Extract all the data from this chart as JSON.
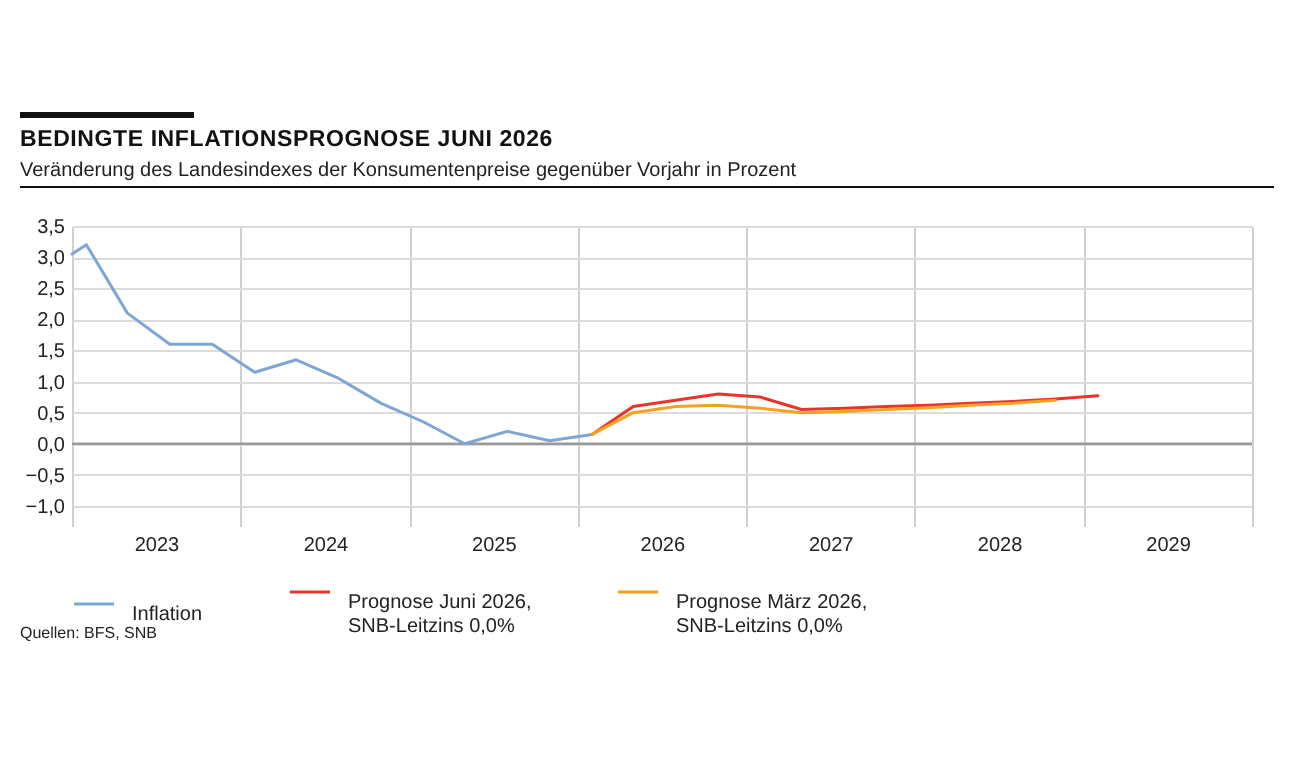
{
  "chart_data": {
    "type": "line",
    "title": "BEDINGTE INFLATIONSPROGNOSE JUNI 2026",
    "subtitle": "Veränderung des Landesindexes der Konsumentenpreise gegenüber Vorjahr in Prozent",
    "annotations": [
      "Quellen: BFS, SNB"
    ],
    "series": [
      {
        "name": "Inflation",
        "color": "#7ea6d3",
        "x": [
          "2023-01",
          "2023-02",
          "2023-05",
          "2023-08",
          "2023-11",
          "2024-02",
          "2024-05",
          "2024-08",
          "2024-11",
          "2025-02",
          "2025-05",
          "2025-08",
          "2025-11",
          "2026-02"
        ],
        "values": [
          3.05,
          3.2,
          2.1,
          1.6,
          1.6,
          1.15,
          1.35,
          1.05,
          0.65,
          0.35,
          0.0,
          0.2,
          0.05,
          0.15
        ]
      },
      {
        "name": "Prognose Juni 2026, SNB-Leitzins 0,0%",
        "color": "#e8352b",
        "x": [
          "2026-02",
          "2026-05",
          "2026-08",
          "2026-11",
          "2027-02",
          "2027-05",
          "2027-08",
          "2027-11",
          "2028-02",
          "2028-05",
          "2028-08",
          "2028-11",
          "2029-02"
        ],
        "values": [
          0.15,
          0.6,
          0.7,
          0.8,
          0.75,
          0.55,
          0.57,
          0.6,
          0.62,
          0.65,
          0.68,
          0.72,
          0.77
        ]
      },
      {
        "name": "Prognose März 2026, SNB-Leitzins 0,0%",
        "color": "#f5a21f",
        "x": [
          "2026-02",
          "2026-05",
          "2026-08",
          "2026-11",
          "2027-02",
          "2027-05",
          "2027-08",
          "2027-11",
          "2028-02",
          "2028-05",
          "2028-08",
          "2028-11"
        ],
        "values": [
          0.15,
          0.5,
          0.6,
          0.62,
          0.57,
          0.5,
          0.52,
          0.55,
          0.58,
          0.62,
          0.65,
          0.7
        ]
      }
    ],
    "xlim": [
      "2023-01-01",
      "2030-01-01"
    ],
    "xticks": [
      {
        "value": "2023-01-01",
        "label": null
      },
      {
        "value": "2023-07-02",
        "label": "2023"
      },
      {
        "value": "2024-01-01",
        "label": null
      },
      {
        "value": "2024-07-02",
        "label": "2024"
      },
      {
        "value": "2025-01-01",
        "label": null
      },
      {
        "value": "2025-07-02",
        "label": "2025"
      },
      {
        "value": "2026-01-01",
        "label": null
      },
      {
        "value": "2026-07-02",
        "label": "2026"
      },
      {
        "value": "2027-01-01",
        "label": null
      },
      {
        "value": "2027-07-02",
        "label": "2027"
      },
      {
        "value": "2028-01-01",
        "label": null
      },
      {
        "value": "2028-07-02",
        "label": "2028"
      },
      {
        "value": "2029-01-01",
        "label": null
      },
      {
        "value": "2029-07-02",
        "label": "2029"
      },
      {
        "value": "2030-01-01",
        "label": null
      }
    ],
    "ylim": [
      -1.0,
      3.5
    ],
    "yticks": [
      {
        "value": -1.0,
        "label": "−1,0"
      },
      {
        "value": -0.5,
        "label": "−0,5"
      },
      {
        "value": 0,
        "label": "0,0"
      },
      {
        "value": 0.5,
        "label": "0,5"
      },
      {
        "value": 1.0,
        "label": "1,0"
      },
      {
        "value": 1.5,
        "label": "1,5"
      },
      {
        "value": 2.0,
        "label": "2,0"
      },
      {
        "value": 2.5,
        "label": "2,5"
      },
      {
        "value": 3.0,
        "label": "3,0"
      },
      {
        "value": 3.5,
        "label": "3,5"
      }
    ],
    "ref_lines": [
      {
        "axis": "y",
        "value": 0,
        "color": "#9a9a9a"
      }
    ],
    "grid": true,
    "legend": "bottom",
    "line_style": "solid",
    "marker": "none"
  }
}
